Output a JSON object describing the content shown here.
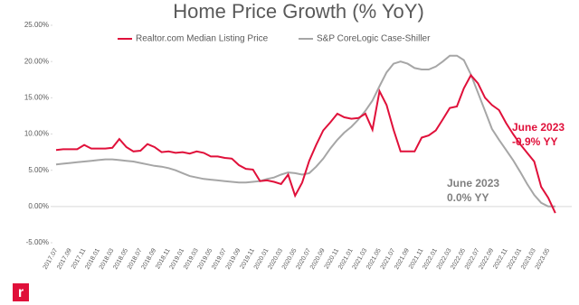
{
  "chart_data": {
    "type": "line",
    "title": "Home Price Growth (% YoY)",
    "categories": [
      "2017.07",
      null,
      "2017.09",
      null,
      "2017.11",
      null,
      "2018.01",
      null,
      "2018.03",
      null,
      "2018.05",
      null,
      "2018.07",
      null,
      "2018.09",
      null,
      "2018.11",
      null,
      "2019.01",
      null,
      "2019.03",
      null,
      "2019.05",
      null,
      "2019.07",
      null,
      "2019.09",
      null,
      "2019.11",
      null,
      "2020.01",
      null,
      "2020.03",
      null,
      "2020.05",
      null,
      "2020.07",
      null,
      "2020.09",
      null,
      "2020.11",
      null,
      "2021.01",
      null,
      "2021.03",
      null,
      "2021.05",
      null,
      "2021.07",
      null,
      "2021.09",
      null,
      "2021.11",
      null,
      "2022.01",
      null,
      "2022.03",
      null,
      "2022.05",
      null,
      "2022.07",
      null,
      "2022.09",
      null,
      "2022.11",
      null,
      "2023.01",
      null,
      "2023.03",
      null,
      "2023.05",
      null
    ],
    "series": [
      {
        "name": "Realtor.com Median Listing Price",
        "color": "#e0103a",
        "values": [
          7.8,
          7.9,
          7.9,
          7.9,
          8.5,
          8.0,
          8.0,
          8.0,
          8.1,
          9.3,
          8.2,
          7.6,
          7.7,
          8.6,
          8.2,
          7.5,
          7.6,
          7.4,
          7.5,
          7.3,
          7.6,
          7.4,
          6.9,
          6.9,
          6.7,
          6.6,
          5.7,
          5.2,
          5.1,
          3.5,
          3.6,
          3.4,
          3.1,
          4.4,
          1.5,
          3.3,
          6.3,
          8.5,
          10.5,
          11.6,
          12.8,
          12.3,
          12.1,
          12.2,
          12.8,
          10.6,
          15.9,
          14.0,
          10.6,
          7.6,
          7.6,
          7.6,
          9.5,
          9.8,
          10.5,
          12.0,
          13.6,
          13.8,
          16.3,
          18.1,
          17.0,
          15.0,
          14.0,
          13.3,
          11.5,
          10.0,
          8.6,
          7.4,
          6.2,
          2.7,
          1.2,
          -0.9
        ]
      },
      {
        "name": "S&P CoreLogic Case-Shiller",
        "color": "#a6a6a6",
        "values": [
          5.8,
          5.9,
          6.0,
          6.1,
          6.2,
          6.3,
          6.4,
          6.5,
          6.5,
          6.4,
          6.3,
          6.2,
          6.0,
          5.8,
          5.6,
          5.5,
          5.3,
          5.0,
          4.6,
          4.2,
          4.0,
          3.8,
          3.7,
          3.6,
          3.5,
          3.4,
          3.3,
          3.3,
          3.4,
          3.5,
          3.8,
          4.0,
          4.4,
          4.7,
          4.6,
          4.4,
          4.6,
          5.5,
          6.6,
          8.0,
          9.2,
          10.2,
          11.0,
          12.0,
          13.2,
          14.6,
          16.6,
          18.5,
          19.7,
          20.0,
          19.7,
          19.1,
          18.9,
          18.9,
          19.3,
          20.0,
          20.8,
          20.8,
          20.2,
          18.2,
          15.7,
          13.2,
          10.7,
          9.2,
          7.8,
          6.4,
          4.8,
          3.1,
          1.6,
          0.5,
          0.0,
          0.0
        ]
      }
    ],
    "ylim": [
      -5,
      25
    ],
    "yticks": [
      {
        "value": -5,
        "label": "-5.00%"
      },
      {
        "value": 0,
        "label": "0.00%"
      },
      {
        "value": 5,
        "label": "5.00%"
      },
      {
        "value": 10,
        "label": "10.00%"
      },
      {
        "value": 15,
        "label": "15.00%"
      },
      {
        "value": 20,
        "label": "20.00%"
      },
      {
        "value": 25,
        "label": "25.00%"
      }
    ],
    "grid": false,
    "annotations": [
      {
        "lines": [
          "June 2023",
          "-0.9% YY"
        ],
        "color": "#e0103a"
      },
      {
        "lines": [
          "June 2023",
          "0.0% YY"
        ],
        "color": "#7f7f7f"
      }
    ]
  }
}
